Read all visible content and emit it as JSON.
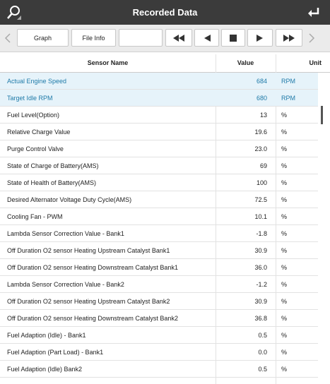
{
  "header": {
    "title": "Recorded Data"
  },
  "toolbar": {
    "buttons": [
      "Graph",
      "File Info"
    ]
  },
  "table": {
    "columns": [
      "Sensor Name",
      "Value",
      "Unit"
    ],
    "rows": [
      [
        "Actual Engine Speed",
        "684",
        "RPM"
      ],
      [
        "Target Idle RPM",
        "680",
        "RPM"
      ],
      [
        "Fuel Level(Option)",
        "13",
        "%"
      ],
      [
        "Relative Charge Value",
        "19.6",
        "%"
      ],
      [
        "Purge Control Valve",
        "23.0",
        "%"
      ],
      [
        "State of Charge of Battery(AMS)",
        "69",
        "%"
      ],
      [
        "State of Health of Battery(AMS)",
        "100",
        "%"
      ],
      [
        "Desired Alternator Voltage Duty Cycle(AMS)",
        "72.5",
        "%"
      ],
      [
        "Cooling Fan - PWM",
        "10.1",
        "%"
      ],
      [
        "Lambda Sensor Correction Value - Bank1",
        "-1.8",
        "%"
      ],
      [
        "Off Duration O2 sensor Heating Upstream Catalyst Bank1",
        "30.9",
        "%"
      ],
      [
        "Off Duration O2 sensor Heating Downstream Catalyst Bank1",
        "36.0",
        "%"
      ],
      [
        "Lambda Sensor Correction Value - Bank2",
        "-1.2",
        "%"
      ],
      [
        "Off Duration O2 sensor Heating Upstream Catalyst Bank2",
        "30.9",
        "%"
      ],
      [
        "Off Duration O2 sensor Heating Downstream Catalyst Bank2",
        "36.8",
        "%"
      ],
      [
        "Fuel Adaption (Idle) - Bank1",
        "0.5",
        "%"
      ],
      [
        "Fuel Adaption (Part Load) - Bank1",
        "0.0",
        "%"
      ],
      [
        "Fuel Adaption (Idle) Bank2",
        "0.5",
        "%"
      ]
    ],
    "highlighted_rows": [
      0,
      1
    ]
  }
}
